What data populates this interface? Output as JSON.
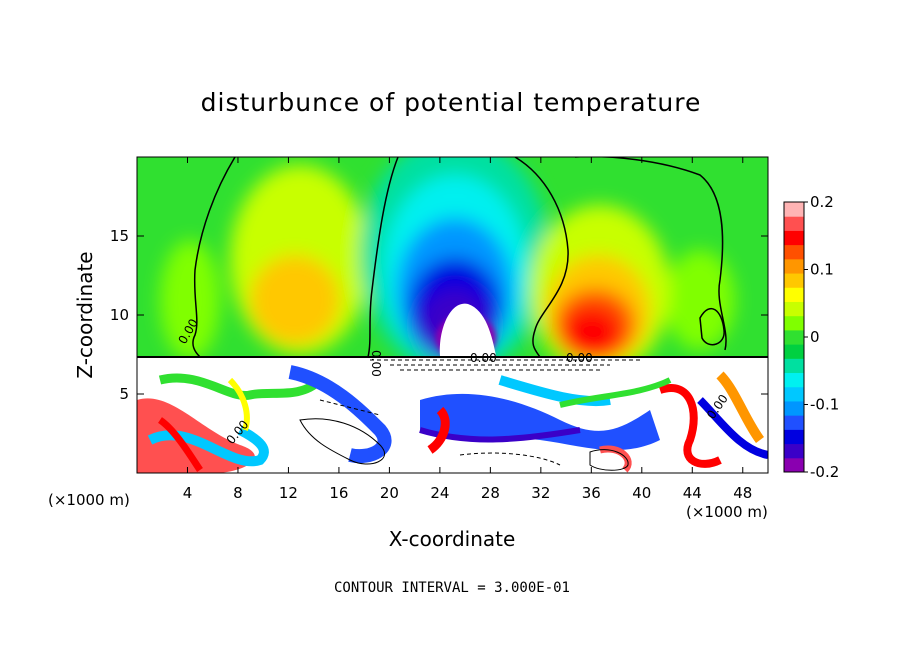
{
  "chart_data": {
    "type": "heatmap",
    "title": "disturbunce of potential temperature",
    "xlabel": "X-coordinate",
    "ylabel": "Z-coordinate",
    "x_unit": "(×1000 m)",
    "x_unit_right": "(×1000 m)",
    "xlim": [
      0,
      50
    ],
    "ylim": [
      0,
      20
    ],
    "x_ticks": [
      "4",
      "8",
      "12",
      "16",
      "20",
      "24",
      "28",
      "32",
      "36",
      "40",
      "44",
      "48"
    ],
    "y_ticks": [
      "5",
      "10",
      "15"
    ],
    "colorbar": {
      "min": -0.2,
      "max": 0.2,
      "ticks": [
        "0.2",
        "0.1",
        "0",
        "-0.1",
        "-0.2"
      ],
      "colors": [
        "#8a00b0",
        "#3a00c8",
        "#0000e0",
        "#2050ff",
        "#0096ff",
        "#00c8ff",
        "#00f0f0",
        "#00e0a0",
        "#00d040",
        "#30e030",
        "#80ff00",
        "#c8ff00",
        "#ffff00",
        "#ffc800",
        "#ff9600",
        "#ff5000",
        "#ff0000",
        "#ff5050",
        "#ffb4b4"
      ]
    },
    "contour_labels": [
      "0.00",
      "0.00",
      "0.00",
      "0.00",
      "0.00",
      "0.00"
    ],
    "footer": "CONTOUR INTERVAL = 3.000E-01",
    "fields": {
      "upper_layer": {
        "z_range": [
          7.5,
          20
        ],
        "features": [
          {
            "name": "cold plume",
            "x": 25,
            "z": 10,
            "value": -0.2
          },
          {
            "name": "warm plume",
            "x": 37,
            "z": 9.5,
            "value": 0.15
          },
          {
            "name": "warm plume",
            "x": 12,
            "z": 10,
            "value": 0.08
          },
          {
            "name": "warm plume",
            "x": 45,
            "z": 10,
            "value": 0.05
          }
        ]
      },
      "lower_layer": {
        "z_range": [
          0,
          7.5
        ],
        "description": "strongly disturbed boundary layer, values saturating beyond ±0.2"
      }
    }
  }
}
